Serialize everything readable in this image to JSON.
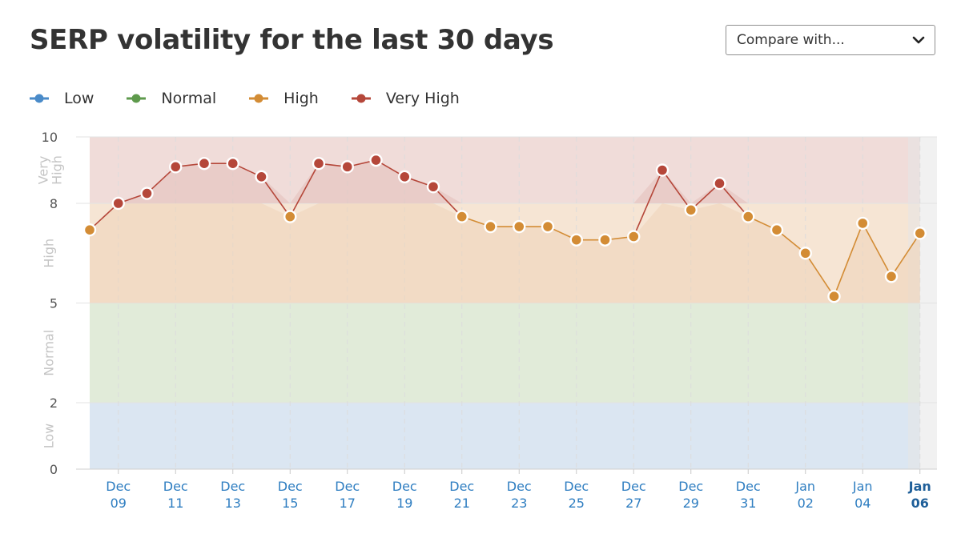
{
  "header": {
    "title": "SERP volatility for the last 30 days",
    "compare_label": "Compare with..."
  },
  "legend": [
    {
      "label": "Low",
      "color": "#4a8bc9"
    },
    {
      "label": "Normal",
      "color": "#5e9a4c"
    },
    {
      "label": "High",
      "color": "#d38c35"
    },
    {
      "label": "Very High",
      "color": "#b5473a"
    }
  ],
  "chart_data": {
    "type": "line",
    "title": "SERP volatility for the last 30 days",
    "ylim": [
      0,
      10
    ],
    "yticks": [
      "0",
      "2",
      "5",
      "8",
      "10"
    ],
    "bands": [
      {
        "label": "Low",
        "from": 0,
        "to": 2,
        "color": "#dbe6f2"
      },
      {
        "label": "Normal",
        "from": 2,
        "to": 5,
        "color": "#e1ebd9"
      },
      {
        "label": "High",
        "from": 5,
        "to": 8,
        "color": "#f6e5d4"
      },
      {
        "label": "Very High",
        "from": 8,
        "to": 10,
        "color": "#f0dcd9"
      }
    ],
    "band_labels": [
      "Low",
      "Normal",
      "High",
      "Very High"
    ],
    "x_ticks": [
      {
        "month": "Dec",
        "day": "09"
      },
      {
        "month": "Dec",
        "day": "11"
      },
      {
        "month": "Dec",
        "day": "13"
      },
      {
        "month": "Dec",
        "day": "15"
      },
      {
        "month": "Dec",
        "day": "17"
      },
      {
        "month": "Dec",
        "day": "19"
      },
      {
        "month": "Dec",
        "day": "21"
      },
      {
        "month": "Dec",
        "day": "23"
      },
      {
        "month": "Dec",
        "day": "25"
      },
      {
        "month": "Dec",
        "day": "27"
      },
      {
        "month": "Dec",
        "day": "29"
      },
      {
        "month": "Dec",
        "day": "31"
      },
      {
        "month": "Jan",
        "day": "02"
      },
      {
        "month": "Jan",
        "day": "04"
      },
      {
        "month": "Jan",
        "day": "06"
      }
    ],
    "x": [
      "Dec 08",
      "Dec 09",
      "Dec 10",
      "Dec 11",
      "Dec 12",
      "Dec 13",
      "Dec 14",
      "Dec 15",
      "Dec 16",
      "Dec 17",
      "Dec 18",
      "Dec 19",
      "Dec 20",
      "Dec 21",
      "Dec 22",
      "Dec 23",
      "Dec 24",
      "Dec 25",
      "Dec 26",
      "Dec 27",
      "Dec 28",
      "Dec 29",
      "Dec 30",
      "Dec 31",
      "Jan 01",
      "Jan 02",
      "Jan 03",
      "Jan 04",
      "Jan 05",
      "Jan 06"
    ],
    "values": [
      7.2,
      8.0,
      8.3,
      9.1,
      9.2,
      9.2,
      8.8,
      7.6,
      9.2,
      9.1,
      9.3,
      8.8,
      8.5,
      7.6,
      7.3,
      7.3,
      7.3,
      6.9,
      6.9,
      7.0,
      9.0,
      7.8,
      8.6,
      7.6,
      7.2,
      6.5,
      5.2,
      7.4,
      5.8,
      7.1
    ],
    "colors": {
      "very_high": "#b5473a",
      "high": "#d38c35",
      "normal": "#5e9a4c",
      "low": "#4a8bc9",
      "axis_text": "#555555",
      "date_text": "#2f7ec1",
      "grid": "#e3e3e3"
    }
  }
}
